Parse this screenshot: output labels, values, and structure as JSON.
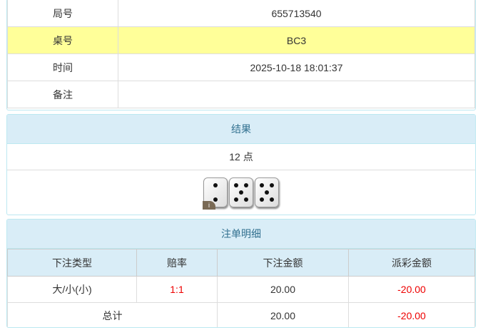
{
  "info": {
    "rows": [
      {
        "label": "局号",
        "value": "655713540"
      },
      {
        "label": "桌号",
        "value": "BC3"
      },
      {
        "label": "时间",
        "value": "2025-10-18 18:01:37"
      },
      {
        "label": "备注",
        "value": ""
      }
    ]
  },
  "result": {
    "title": "结果",
    "points": "12 点",
    "dice": [
      2,
      5,
      5
    ],
    "info_badge": "i"
  },
  "bets": {
    "title": "注单明细",
    "columns": [
      "下注类型",
      "赔率",
      "下注金额",
      "派彩金额"
    ],
    "rows": [
      {
        "type": "大/小(小)",
        "odds": "1:1",
        "amount": "20.00",
        "payout": "-20.00"
      }
    ],
    "total": {
      "label": "总计",
      "amount": "20.00",
      "payout": "-20.00"
    }
  },
  "colors": {
    "highlight_row": "#ffff99",
    "header_bg": "#d9edf7",
    "negative": "#ee0000"
  }
}
